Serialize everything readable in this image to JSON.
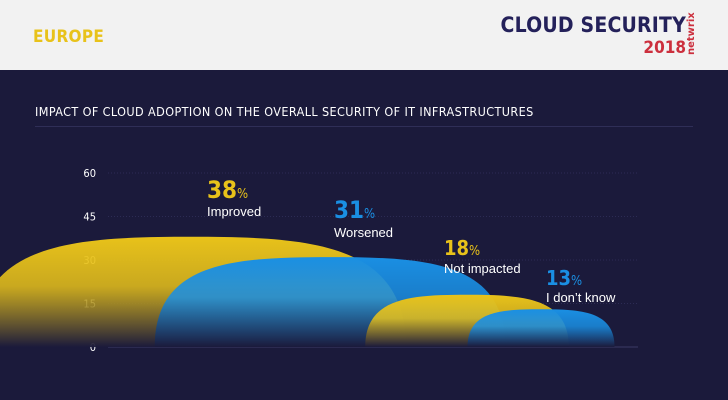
{
  "header": {
    "region": "EUROPE",
    "brand_title": "CLOUD SECURITY",
    "brand_year": "2018",
    "brand_logo": "netwrix"
  },
  "chart_data": {
    "type": "bar",
    "title": "IMPACT OF CLOUD ADOPTION ON THE OVERALL SECURITY OF IT INFRASTRUCTURES",
    "xlabel": "",
    "ylabel": "",
    "ylim": [
      0,
      60
    ],
    "yticks": [
      "60",
      "45",
      "30",
      "15",
      "0"
    ],
    "categories": [
      "Improved",
      "Worsened",
      "Not impacted",
      "I don’t know"
    ],
    "values": [
      38,
      31,
      18,
      13
    ],
    "unit": "%",
    "colors": [
      "#e8c21a",
      "#1a8fe3",
      "#e8c21a",
      "#1a8fe3"
    ],
    "grid": true,
    "legend": "none"
  }
}
